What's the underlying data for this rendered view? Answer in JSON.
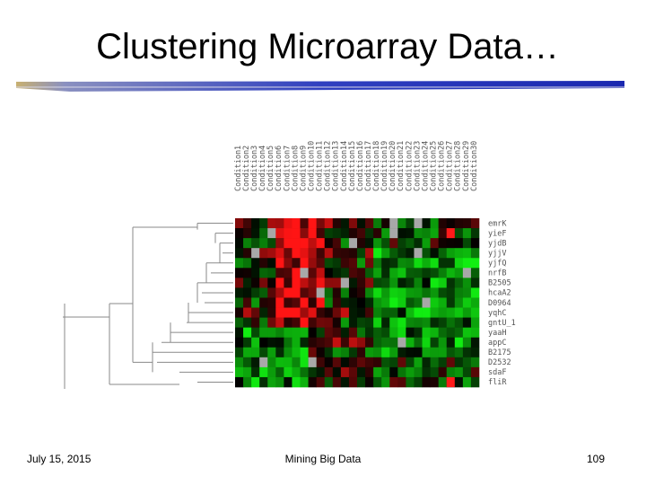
{
  "slide": {
    "title": "Clustering Microarray Data…"
  },
  "footer": {
    "date": "July 15, 2015",
    "center": "Mining Big Data",
    "page": "109"
  },
  "figure": {
    "column_labels": [
      "Condition1",
      "Condition2",
      "Condition3",
      "Condition4",
      "Condition5",
      "Condition6",
      "Condition7",
      "Condition8",
      "Condition9",
      "Condition10",
      "Condition11",
      "Condition12",
      "Condition13",
      "Condition14",
      "Condition15",
      "Condition16",
      "Condition17",
      "Condition18",
      "Condition19",
      "Condition20",
      "Condition21",
      "Condition22",
      "Condition23",
      "Condition24",
      "Condition25",
      "Condition26",
      "Condition27",
      "Condition28",
      "Condition29",
      "Condition30"
    ],
    "row_labels": [
      "emrK",
      "yieF",
      "yjdB",
      "yjjV",
      "yjfQ",
      "nrfB",
      "B2505",
      "hcaA2",
      "D0964",
      "yqhC",
      "gntU_1",
      "yaaH",
      "appC",
      "B2175",
      "D2532",
      "sdaF",
      "fliR"
    ],
    "colors": {
      "red": "#ff1a1a",
      "green": "#11ee11",
      "black": "#000000",
      "missing": "#a8a8a8",
      "rule_blue": "#2233bb",
      "rule_gold": "#c8b070"
    }
  }
}
